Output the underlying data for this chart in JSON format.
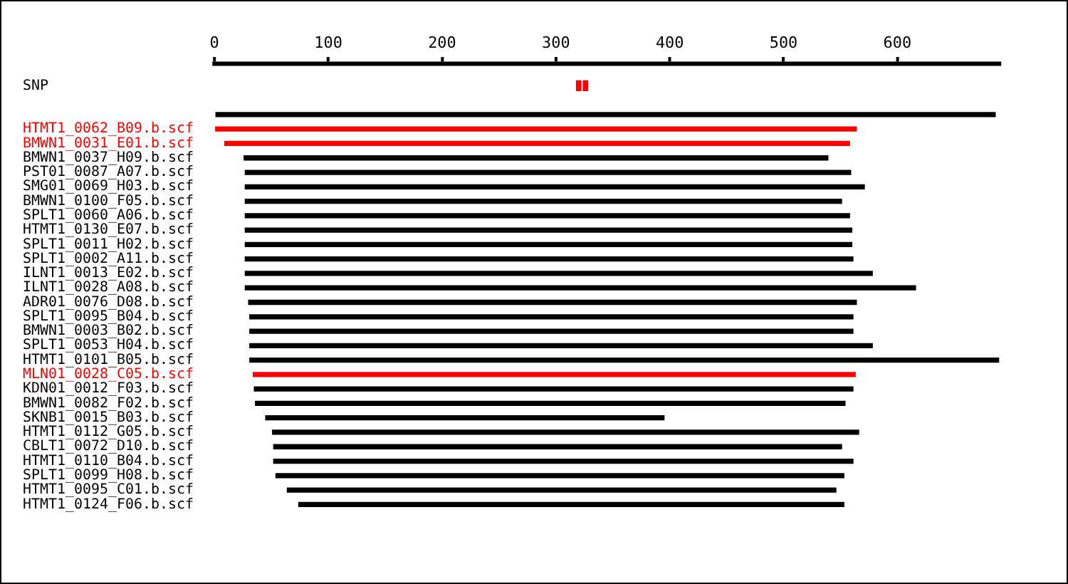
{
  "chart_data": {
    "type": "bar",
    "orientation": "horizontal",
    "legend": false,
    "grid": false,
    "categories": [
      null,
      "SNP",
      null,
      null,
      "HTMT1_0062_B09.b.scf",
      "BMWN1_0031_E01.b.scf",
      "BMWN1_0037_H09.b.scf",
      "PST01_0087_A07.b.scf",
      "SMG01_0069_H03.b.scf",
      "BMWN1_0100_F05.b.scf",
      "SPLT1_0060_A06.b.scf",
      "HTMT1_0130_E07.b.scf",
      "SPLT1_0011_H02.b.scf",
      "SPLT1_0002_A11.b.scf",
      "ILNT1_0013_E02.b.scf",
      "ILNT1_0028_A08.b.scf",
      "ADR01_0076_D08.b.scf",
      "SPLT1_0095_B04.b.scf",
      "BMWN1_0003_B02.b.scf",
      "SPLT1_0053_H04.b.scf",
      "HTMT1_0101_B05.b.scf",
      "MLN01_0028_C05.b.scf",
      "KDN01_0012_F03.b.scf",
      "BMWN1_0082_F02.b.scf",
      "SKNB1_0015_B03.b.scf",
      "HTMT1_0112_G05.b.scf",
      "CBLT1_0072_D10.b.scf",
      "HTMT1_0110_B04.b.scf",
      "SPLT1_0099_H08.b.scf",
      "HTMT1_0095_C01.b.scf",
      "HTMT1_0124_F06.b.scf"
    ],
    "xlim": [
      0,
      690
    ],
    "xticks": [
      0,
      100,
      200,
      300,
      400,
      500,
      600
    ],
    "series": [
      {
        "base": [
          null,
          null,
          null,
          0,
          1,
          9,
          26,
          27,
          27,
          27,
          27,
          27,
          27,
          27,
          27,
          27,
          30,
          31,
          31,
          31,
          31,
          34,
          35,
          36,
          45,
          51,
          52,
          52,
          54,
          64,
          74
        ],
        "values": [
          null,
          null,
          null,
          686,
          563,
          549,
          513,
          532,
          544,
          524,
          531,
          533,
          533,
          534,
          551,
          589,
          534,
          530,
          530,
          547,
          658,
          529,
          526,
          518,
          350,
          515,
          499,
          509,
          499,
          482,
          479
        ],
        "colors": [
          "#000000",
          "#000000",
          "#000000",
          "#000000",
          "#ff0000",
          "#ff0000",
          "#000000",
          "#000000",
          "#000000",
          "#000000",
          "#000000",
          "#000000",
          "#000000",
          "#000000",
          "#000000",
          "#000000",
          "#000000",
          "#000000",
          "#000000",
          "#000000",
          "#000000",
          "#ff0000",
          "#000000",
          "#000000",
          "#000000",
          "#000000",
          "#000000",
          "#000000",
          "#000000",
          "#000000",
          "#000000"
        ]
      },
      {
        "color": "#ff0000",
        "base": [
          null,
          318,
          null,
          null,
          null,
          null,
          null,
          null,
          null,
          null,
          null,
          null,
          null,
          null,
          null,
          null,
          null,
          null,
          null,
          null,
          null,
          null,
          null,
          null,
          null,
          null,
          null,
          null,
          null,
          null,
          null
        ],
        "values": [
          null,
          4,
          null,
          null,
          null,
          null,
          null,
          null,
          null,
          null,
          null,
          null,
          null,
          null,
          null,
          null,
          null,
          null,
          null,
          null,
          null,
          null,
          null,
          null,
          null,
          null,
          null,
          null,
          null,
          null,
          null
        ]
      },
      {
        "color": "#ff0000",
        "base": [
          null,
          324,
          null,
          null,
          null,
          null,
          null,
          null,
          null,
          null,
          null,
          null,
          null,
          null,
          null,
          null,
          null,
          null,
          null,
          null,
          null,
          null,
          null,
          null,
          null,
          null,
          null,
          null,
          null,
          null,
          null
        ],
        "values": [
          null,
          4,
          null,
          null,
          null,
          null,
          null,
          null,
          null,
          null,
          null,
          null,
          null,
          null,
          null,
          null,
          null,
          null,
          null,
          null,
          null,
          null,
          null,
          null,
          null,
          null,
          null,
          null,
          null,
          null,
          null
        ]
      }
    ]
  }
}
